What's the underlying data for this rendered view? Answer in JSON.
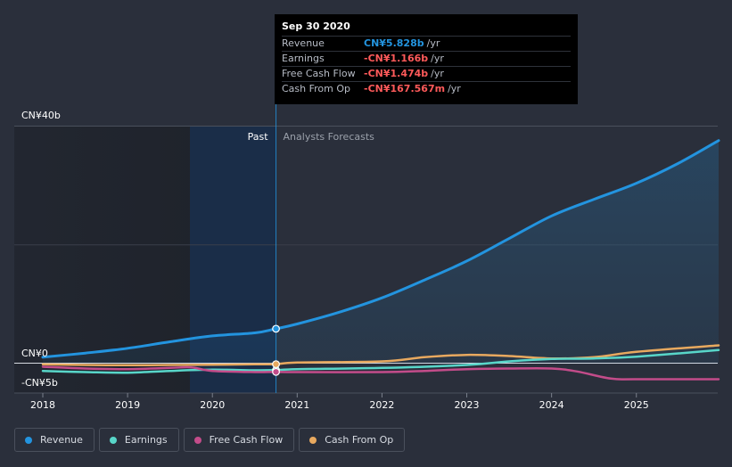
{
  "chart_data": {
    "type": "line",
    "y_top_label": "CN¥40b",
    "y_zero_label": "CN¥0",
    "y_bottom_label": "-CN¥5b",
    "ylim": [
      -5,
      40
    ],
    "xlim": [
      2018,
      2025.97
    ],
    "x_ticks": [
      2018,
      2019,
      2020,
      2021,
      2022,
      2023,
      2024,
      2025
    ],
    "past_label": "Past",
    "forecast_label": "Analysts Forecasts",
    "split_x": 2020.75,
    "series": [
      {
        "name": "Revenue",
        "color": "#2394df",
        "points": [
          [
            2018,
            1.0
          ],
          [
            2018.5,
            1.7
          ],
          [
            2019,
            2.5
          ],
          [
            2019.5,
            3.6
          ],
          [
            2020,
            4.6
          ],
          [
            2020.5,
            5.1
          ],
          [
            2020.75,
            5.8
          ],
          [
            2021,
            6.6
          ],
          [
            2021.5,
            8.6
          ],
          [
            2022,
            11.0
          ],
          [
            2022.5,
            14.0
          ],
          [
            2023,
            17.2
          ],
          [
            2023.5,
            21.0
          ],
          [
            2024,
            24.8
          ],
          [
            2024.5,
            27.6
          ],
          [
            2025,
            30.3
          ],
          [
            2025.5,
            33.7
          ],
          [
            2025.97,
            37.5
          ]
        ]
      },
      {
        "name": "Earnings",
        "color": "#58d6c9",
        "points": [
          [
            2018,
            -1.3
          ],
          [
            2018.5,
            -1.5
          ],
          [
            2019,
            -1.6
          ],
          [
            2019.5,
            -1.3
          ],
          [
            2020,
            -1.1
          ],
          [
            2020.5,
            -1.2
          ],
          [
            2020.75,
            -1.17
          ],
          [
            2021,
            -1.0
          ],
          [
            2022,
            -0.8
          ],
          [
            2023,
            -0.3
          ],
          [
            2023.5,
            0.3
          ],
          [
            2024,
            0.7
          ],
          [
            2024.5,
            0.8
          ],
          [
            2025,
            1.1
          ],
          [
            2025.97,
            2.2
          ]
        ]
      },
      {
        "name": "Free Cash Flow",
        "color": "#c34c8a",
        "points": [
          [
            2018,
            -0.6
          ],
          [
            2018.5,
            -0.9
          ],
          [
            2019,
            -1.0
          ],
          [
            2019.5,
            -0.8
          ],
          [
            2019.75,
            -0.7
          ],
          [
            2020,
            -1.3
          ],
          [
            2020.5,
            -1.5
          ],
          [
            2020.75,
            -1.47
          ],
          [
            2021,
            -1.5
          ],
          [
            2022,
            -1.5
          ],
          [
            2022.5,
            -1.3
          ],
          [
            2023,
            -1.0
          ],
          [
            2023.5,
            -0.9
          ],
          [
            2024,
            -0.9
          ],
          [
            2024.3,
            -1.4
          ],
          [
            2024.7,
            -2.6
          ],
          [
            2025,
            -2.7
          ],
          [
            2025.97,
            -2.7
          ]
        ]
      },
      {
        "name": "Cash From Op",
        "color": "#e8a95f",
        "points": [
          [
            2018,
            -0.2
          ],
          [
            2018.5,
            -0.3
          ],
          [
            2019,
            -0.35
          ],
          [
            2019.5,
            -0.3
          ],
          [
            2020,
            -0.25
          ],
          [
            2020.5,
            -0.2
          ],
          [
            2020.75,
            -0.17
          ],
          [
            2021,
            0.1
          ],
          [
            2022,
            0.3
          ],
          [
            2022.5,
            1.0
          ],
          [
            2023,
            1.4
          ],
          [
            2023.5,
            1.2
          ],
          [
            2024,
            0.8
          ],
          [
            2024.5,
            1.0
          ],
          [
            2025,
            1.9
          ],
          [
            2025.97,
            3.0
          ]
        ]
      }
    ],
    "highlight_x": 2020.75
  },
  "tooltip": {
    "date": "Sep 30 2020",
    "rows": [
      {
        "name": "Revenue",
        "value": "CN¥5.828b",
        "unit": "/yr",
        "color": "#2394df"
      },
      {
        "name": "Earnings",
        "value": "-CN¥1.166b",
        "unit": "/yr",
        "color": "#ff5a5a"
      },
      {
        "name": "Free Cash Flow",
        "value": "-CN¥1.474b",
        "unit": "/yr",
        "color": "#ff5a5a"
      },
      {
        "name": "Cash From Op",
        "value": "-CN¥167.567m",
        "unit": "/yr",
        "color": "#ff5a5a"
      }
    ]
  },
  "legend": [
    {
      "label": "Revenue",
      "color": "#2394df"
    },
    {
      "label": "Earnings",
      "color": "#58d6c9"
    },
    {
      "label": "Free Cash Flow",
      "color": "#c34c8a"
    },
    {
      "label": "Cash From Op",
      "color": "#e8a95f"
    }
  ]
}
